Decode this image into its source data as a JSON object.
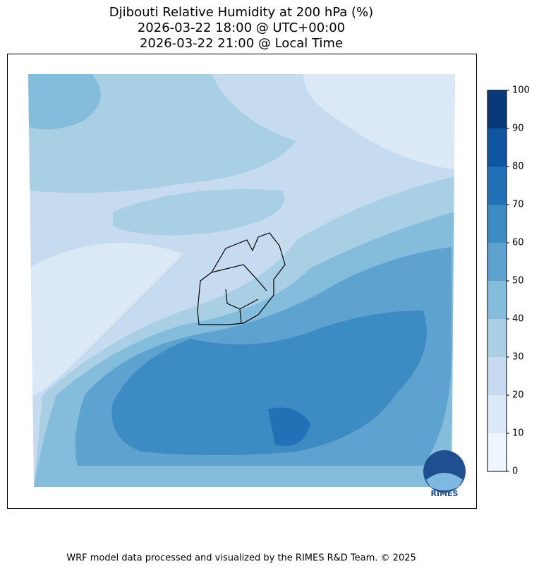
{
  "header": {
    "title_lines": [
      "Djibouti Relative Humidity at 200 hPa (%)",
      "2026-03-22 18:00 @ UTC+00:00",
      "2026-03-22 21:00 @ Local Time"
    ]
  },
  "colorbar": {
    "lim": [
      0,
      100
    ],
    "ticks": [
      0,
      10,
      20,
      30,
      40,
      50,
      60,
      70,
      80,
      90,
      100
    ],
    "colors": [
      "#eef5fc",
      "#dbe9f6",
      "#c6dbef",
      "#a9cfe5",
      "#84bcdb",
      "#5ea3d0",
      "#3d8bc3",
      "#2270b5",
      "#0f56a0",
      "#083a7a"
    ]
  },
  "logo": {
    "text": "RIMES"
  },
  "footer": {
    "text": "WRF model data processed and visualized by the RIMES R&D Team. © 2025"
  }
}
